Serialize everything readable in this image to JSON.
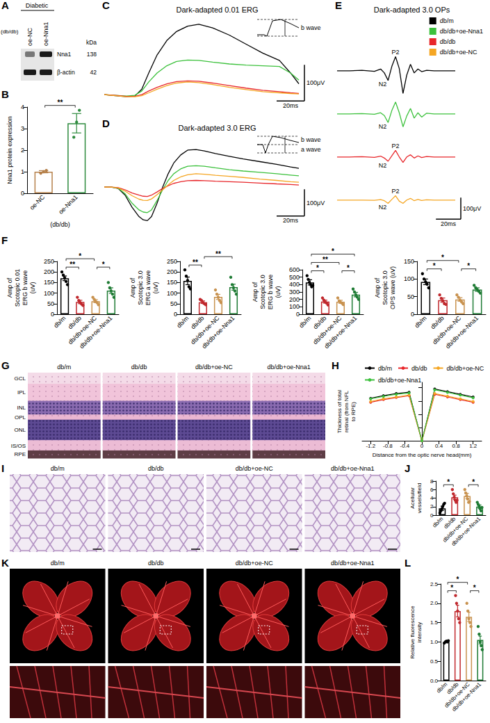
{
  "blot": {
    "panel": "A",
    "group": "Diabetic",
    "strain": "(db/db)",
    "lanes": [
      "oe-NC",
      "oe-Nna1"
    ],
    "unit": "kDa",
    "bands": [
      {
        "name": "Nna1",
        "size": 138
      },
      {
        "name": "β-actin",
        "size": 42
      }
    ]
  },
  "chart_data": [
    {
      "panel": "B",
      "type": "bar",
      "categories": [
        "oe-NC",
        "oe-Nna1"
      ],
      "xlabel": "(db/db)",
      "ylabel": "Nna1 protein expression",
      "values": [
        1.0,
        3.25
      ],
      "errors": [
        0.05,
        0.45
      ],
      "points": [
        [
          0.93,
          1.0,
          1.06
        ],
        [
          2.6,
          3.3,
          3.85
        ]
      ],
      "colors": [
        "#b5804a",
        "#2e8b3e"
      ],
      "ylim": [
        0,
        4
      ],
      "yticks": [
        0,
        1,
        2,
        3,
        4
      ],
      "comparisons": [
        {
          "from": 0,
          "to": 1,
          "label": "**"
        }
      ]
    },
    {
      "panel": "C",
      "type": "line",
      "title": "Dark-adapted 0.01 ERG",
      "tick_labels": false,
      "x": [
        0,
        8,
        16,
        22,
        27,
        32,
        38,
        45,
        52,
        60,
        68,
        78,
        90,
        102,
        114,
        126,
        134,
        140
      ],
      "xlim": [
        0,
        140
      ],
      "ylim": [
        -50,
        220
      ],
      "series": [
        {
          "name": "db/m",
          "color": "#000000",
          "values": [
            0,
            -3,
            -6,
            -4,
            15,
            60,
            110,
            150,
            175,
            190,
            195,
            185,
            165,
            140,
            115,
            95,
            60,
            30
          ]
        },
        {
          "name": "db/db+oe-Nna1",
          "color": "#3cc13c",
          "values": [
            0,
            -2,
            -4,
            -2,
            10,
            35,
            60,
            80,
            92,
            96,
            95,
            90,
            85,
            82,
            80,
            78,
            60,
            40
          ]
        },
        {
          "name": "db/db",
          "color": "#e8262a",
          "values": [
            0,
            -2,
            -5,
            -5,
            0,
            10,
            20,
            30,
            36,
            38,
            37,
            32,
            25,
            18,
            12,
            8,
            5,
            3
          ]
        },
        {
          "name": "db/db+oe-NC",
          "color": "#f5a623",
          "values": [
            0,
            -3,
            -6,
            -6,
            -3,
            5,
            15,
            25,
            32,
            35,
            33,
            28,
            20,
            14,
            8,
            5,
            3,
            2
          ]
        }
      ],
      "scale_bar": {
        "x": 20,
        "x_label": "20ms",
        "y": 100,
        "y_label": "100μV"
      },
      "inset_labels": [
        "b wave"
      ]
    },
    {
      "panel": "D",
      "type": "line",
      "title": "Dark-adapted 3.0 ERG",
      "tick_labels": false,
      "x": [
        0,
        5,
        10,
        15,
        20,
        25,
        28,
        31,
        34,
        38,
        42,
        46,
        50,
        55,
        60,
        66,
        72,
        80,
        90,
        100,
        112,
        124,
        134,
        140
      ],
      "xlim": [
        0,
        140
      ],
      "ylim": [
        -150,
        200
      ],
      "series": [
        {
          "name": "db/m",
          "color": "#000000",
          "values": [
            0,
            0,
            -5,
            -30,
            -75,
            -110,
            -122,
            -125,
            -110,
            -60,
            0,
            50,
            90,
            120,
            138,
            140,
            135,
            125,
            115,
            105,
            95,
            85,
            75,
            70
          ]
        },
        {
          "name": "db/db+oe-Nna1",
          "color": "#3cc13c",
          "values": [
            0,
            0,
            -4,
            -25,
            -60,
            -85,
            -93,
            -95,
            -85,
            -50,
            -10,
            25,
            50,
            68,
            78,
            80,
            78,
            72,
            65,
            60,
            55,
            50,
            45,
            42
          ]
        },
        {
          "name": "db/db",
          "color": "#e8262a",
          "values": [
            0,
            0,
            -2,
            -10,
            -22,
            -30,
            -34,
            -35,
            -30,
            -18,
            -5,
            5,
            14,
            20,
            24,
            25,
            24,
            22,
            20,
            18,
            15,
            12,
            10,
            8
          ]
        },
        {
          "name": "db/db+oe-NC",
          "color": "#f5a623",
          "values": [
            0,
            0,
            -3,
            -15,
            -32,
            -45,
            -49,
            -50,
            -44,
            -28,
            -10,
            8,
            25,
            38,
            46,
            50,
            48,
            44,
            40,
            36,
            30,
            25,
            20,
            18
          ]
        }
      ],
      "scale_bar": {
        "x": 20,
        "x_label": "20ms",
        "y": 100,
        "y_label": "100μV"
      },
      "inset_labels": [
        "b wave",
        "a wave"
      ]
    },
    {
      "panel": "E",
      "type": "traces",
      "title": "Dark-adapted 3.0 OPs",
      "tick_labels": false,
      "legend": "top-right",
      "x": [
        0,
        10,
        20,
        30,
        35,
        38,
        41,
        44,
        47,
        50,
        53,
        56,
        59,
        62,
        65,
        68,
        72,
        78,
        85,
        95
      ],
      "xlim": [
        0,
        95
      ],
      "ylim": [
        -110,
        70
      ],
      "series": [
        {
          "name": "db/m",
          "color": "#000000",
          "values": [
            0,
            0,
            2,
            -3,
            8,
            -10,
            -45,
            20,
            65,
            10,
            -105,
            -20,
            30,
            -10,
            8,
            -4,
            2,
            0,
            0,
            0
          ],
          "labels": [
            {
              "text": "N2",
              "x": 41,
              "y": -45
            },
            {
              "text": "P2",
              "x": 47,
              "y": 65
            }
          ]
        },
        {
          "name": "db/db+oe-Nna1",
          "color": "#3cc13c",
          "values": [
            0,
            0,
            1,
            -2,
            5,
            -8,
            -40,
            15,
            55,
            5,
            -60,
            -10,
            25,
            -20,
            5,
            -15,
            3,
            0,
            0,
            0
          ],
          "labels": [
            {
              "text": "N2",
              "x": 41,
              "y": -40
            }
          ]
        },
        {
          "name": "db/db",
          "color": "#e8262a",
          "values": [
            0,
            0,
            1,
            -2,
            4,
            -5,
            -20,
            5,
            30,
            0,
            -25,
            0,
            10,
            -5,
            5,
            -3,
            2,
            0,
            0,
            0
          ],
          "labels": [
            {
              "text": "N2",
              "x": 41,
              "y": -20
            },
            {
              "text": "P2",
              "x": 47,
              "y": 30
            }
          ]
        },
        {
          "name": "db/db+oe-NC",
          "color": "#f5a623",
          "values": [
            0,
            0,
            0,
            -1,
            2,
            -3,
            -15,
            3,
            20,
            -5,
            -15,
            0,
            8,
            -3,
            3,
            -2,
            1,
            0,
            0,
            0
          ],
          "labels": [
            {
              "text": "N2",
              "x": 41,
              "y": -15
            },
            {
              "text": "P2",
              "x": 47,
              "y": 20
            }
          ]
        }
      ],
      "scale_bar": {
        "x": 20,
        "x_label": "20ms",
        "y": 100,
        "y_label": "100μV"
      }
    },
    {
      "panel": "F",
      "type": "bar",
      "categories": [
        "db/m",
        "db/db",
        "db/db+oe-NC",
        "db/db+oe-Nna1"
      ],
      "ylabel": "Amp of Scotopic 0.01 ERG b wave (uV)",
      "values": [
        170,
        58,
        62,
        112
      ],
      "errors": [
        11,
        8,
        7,
        13
      ],
      "points": [
        [
          200,
          185,
          172,
          155,
          140
        ],
        [
          80,
          65,
          55,
          48,
          42
        ],
        [
          80,
          70,
          60,
          55,
          45
        ],
        [
          150,
          125,
          110,
          95,
          80
        ]
      ],
      "colors": [
        "#000000",
        "#c0282d",
        "#c8924f",
        "#1e7b34"
      ],
      "ylim": [
        0,
        250
      ],
      "yticks": [
        0,
        50,
        100,
        150,
        200,
        250
      ],
      "comparisons": [
        {
          "from": 0,
          "to": 1,
          "label": "**"
        },
        {
          "from": 0,
          "to": 2,
          "label": "*"
        },
        {
          "from": 2,
          "to": 3,
          "label": "*"
        }
      ]
    },
    {
      "type": "bar",
      "categories": [
        "db/m",
        "db/db",
        "db/db+oe-NC",
        "db/db+oe-Nna1"
      ],
      "ylabel": "Amp of Scotopic 3.0 ERG a wave (uV)",
      "values": [
        158,
        57,
        82,
        128
      ],
      "errors": [
        18,
        6,
        12,
        14
      ],
      "points": [
        [
          210,
          180,
          160,
          130,
          120
        ],
        [
          70,
          65,
          55,
          50,
          45
        ],
        [
          115,
          95,
          80,
          65,
          55
        ],
        [
          175,
          140,
          125,
          110,
          95
        ]
      ],
      "colors": [
        "#000000",
        "#c0282d",
        "#c8924f",
        "#1e7b34"
      ],
      "ylim": [
        0,
        250
      ],
      "yticks": [
        0,
        50,
        100,
        150,
        200,
        250
      ],
      "comparisons": [
        {
          "from": 0,
          "to": 1,
          "label": "**"
        },
        {
          "from": 1,
          "to": 3,
          "label": "**"
        }
      ]
    },
    {
      "type": "bar",
      "categories": [
        "db/m",
        "db/db",
        "db/db+oe-NC",
        "db/db+oe-Nna1"
      ],
      "ylabel": "Amp of Scotopic 3.0 ERG b wave (uV)",
      "values": [
        430,
        170,
        168,
        265
      ],
      "errors": [
        35,
        20,
        20,
        30
      ],
      "points": [
        [
          520,
          470,
          430,
          400,
          370,
          390
        ],
        [
          220,
          190,
          165,
          150,
          125
        ],
        [
          220,
          180,
          160,
          150,
          130
        ],
        [
          340,
          300,
          260,
          230,
          200
        ]
      ],
      "colors": [
        "#000000",
        "#c0282d",
        "#c8924f",
        "#1e7b34"
      ],
      "ylim": [
        0,
        600
      ],
      "yticks": [
        0,
        100,
        200,
        300,
        400,
        500,
        600
      ],
      "comparisons": [
        {
          "from": 0,
          "to": 1,
          "label": "*"
        },
        {
          "from": 0,
          "to": 2,
          "label": "**"
        },
        {
          "from": 0,
          "to": 3,
          "label": "*"
        },
        {
          "from": 2,
          "to": 3,
          "label": "*"
        }
      ]
    },
    {
      "type": "bar",
      "categories": [
        "db/m",
        "db/db",
        "db/db+oe-NC",
        "db/db+oe-Nna1"
      ],
      "ylabel": "Amp of Scotopic 3.0 OPS wave (uV)",
      "values": [
        92,
        40,
        42,
        70
      ],
      "errors": [
        8,
        6,
        5,
        5
      ],
      "points": [
        [
          115,
          100,
          92,
          85,
          75
        ],
        [
          55,
          45,
          38,
          30,
          28
        ],
        [
          55,
          48,
          40,
          35,
          30
        ],
        [
          82,
          75,
          70,
          65,
          60
        ]
      ],
      "colors": [
        "#000000",
        "#c0282d",
        "#c8924f",
        "#1e7b34"
      ],
      "ylim": [
        0,
        150
      ],
      "yticks": [
        0,
        50,
        100,
        150
      ],
      "comparisons": [
        {
          "from": 0,
          "to": 1,
          "label": "*"
        },
        {
          "from": 0,
          "to": 2,
          "label": "*"
        },
        {
          "from": 2,
          "to": 3,
          "label": "*"
        }
      ]
    },
    {
      "panel": "H",
      "type": "line",
      "marker": "circle",
      "legend": "top",
      "tick_labels": "x",
      "xlabel": "Distance from the optic nerve head(mm)",
      "ylabel": "Thickness of total retinal (from NFL to RPE)",
      "x": [
        -1.2,
        -0.9,
        -0.6,
        -0.3,
        0,
        0.3,
        0.6,
        0.9,
        1.2
      ],
      "xlim": [
        -1.4,
        1.4
      ],
      "xticks": [
        -1.2,
        -0.8,
        -0.4,
        0,
        0.4,
        0.8,
        1.2
      ],
      "ylim": [
        0,
        220
      ],
      "yticks": [
        0,
        50,
        100,
        150,
        200
      ],
      "series": [
        {
          "name": "db/m",
          "color": "#000000",
          "values": [
            160,
            170,
            178,
            183,
            0,
            195,
            185,
            175,
            165
          ]
        },
        {
          "name": "db/db",
          "color": "#e8262a",
          "values": [
            145,
            155,
            163,
            170,
            0,
            175,
            165,
            155,
            145
          ]
        },
        {
          "name": "db/db+oe-NC",
          "color": "#f5a623",
          "values": [
            148,
            158,
            165,
            172,
            0,
            178,
            168,
            158,
            148
          ]
        },
        {
          "name": "db/db+oe-Nna1",
          "color": "#3cc13c",
          "values": [
            158,
            167,
            175,
            180,
            0,
            192,
            182,
            172,
            162
          ]
        }
      ]
    },
    {
      "panel": "J",
      "type": "bar",
      "categories": [
        "db/m",
        "db/db",
        "db/db+oe-NC",
        "db/db+oe-Nna1"
      ],
      "ylabel": "Acellular vessels/field",
      "values": [
        1.6,
        4.2,
        4.5,
        2.0
      ],
      "errors": [
        0.5,
        0.5,
        0.6,
        0.4
      ],
      "points": [
        [
          0.5,
          1,
          1.5,
          2,
          2.5,
          2.8
        ],
        [
          6,
          5,
          4.2,
          3.5,
          3,
          3.5
        ],
        [
          6,
          5.2,
          4.5,
          3.8,
          3,
          3.2
        ],
        [
          3,
          2.5,
          2,
          1.5,
          1,
          1.8
        ]
      ],
      "colors": [
        "#000000",
        "#c0282d",
        "#c8924f",
        "#1e7b34"
      ],
      "ylim": [
        0,
        8
      ],
      "yticks": [
        0,
        2,
        4,
        6,
        8
      ],
      "comparisons": [
        {
          "from": 0,
          "to": 1,
          "label": "*"
        },
        {
          "from": 2,
          "to": 3,
          "label": "*"
        }
      ]
    },
    {
      "panel": "L",
      "type": "bar",
      "categories": [
        "db/m",
        "db/db",
        "db/db+oe-NC",
        "db/db+oe-Nna1"
      ],
      "ylabel": "Relative fluorescence intensity",
      "values": [
        1.0,
        1.8,
        1.65,
        1.05
      ],
      "errors": [
        0.02,
        0.15,
        0.12,
        0.1
      ],
      "points": [
        [
          0.97,
          1.0,
          1.02,
          1.0,
          1.03
        ],
        [
          2.2,
          2.0,
          1.8,
          1.6,
          1.5
        ],
        [
          2.0,
          1.8,
          1.6,
          1.5,
          1.4
        ],
        [
          1.4,
          1.2,
          1.0,
          0.9,
          0.8
        ]
      ],
      "colors": [
        "#000000",
        "#c0282d",
        "#c8924f",
        "#1e7b34"
      ],
      "ylim": [
        0,
        2.5
      ],
      "yticks": [
        {
          "value": 0,
          "label": "0.0"
        },
        0.5,
        {
          "value": 1,
          "label": "1.0"
        },
        1.5,
        {
          "value": 2,
          "label": "2.0"
        },
        2.5
      ],
      "comparisons": [
        {
          "from": 0,
          "to": 1,
          "label": "*"
        },
        {
          "from": 0,
          "to": 2,
          "label": "*"
        },
        {
          "from": 2,
          "to": 3,
          "label": "*"
        }
      ]
    }
  ],
  "images": [
    {
      "panel": "G",
      "titles": [
        "db/m",
        "db/db",
        "db/db+oe-NC",
        "db/db+oe-Nna1"
      ],
      "layers": [
        "GCL",
        "IPL",
        "INL",
        "OPL",
        "ONL",
        "IS/OS",
        "RPE"
      ]
    },
    {
      "panel": "I",
      "titles": [
        "db/m",
        "db/db",
        "db/db+oe-NC",
        "db/db+oe-Nna1"
      ]
    },
    {
      "panel": "K",
      "titles": [
        "db/m",
        "db/db",
        "db/db+oe-NC",
        "db/db+oe-Nna1"
      ]
    }
  ]
}
